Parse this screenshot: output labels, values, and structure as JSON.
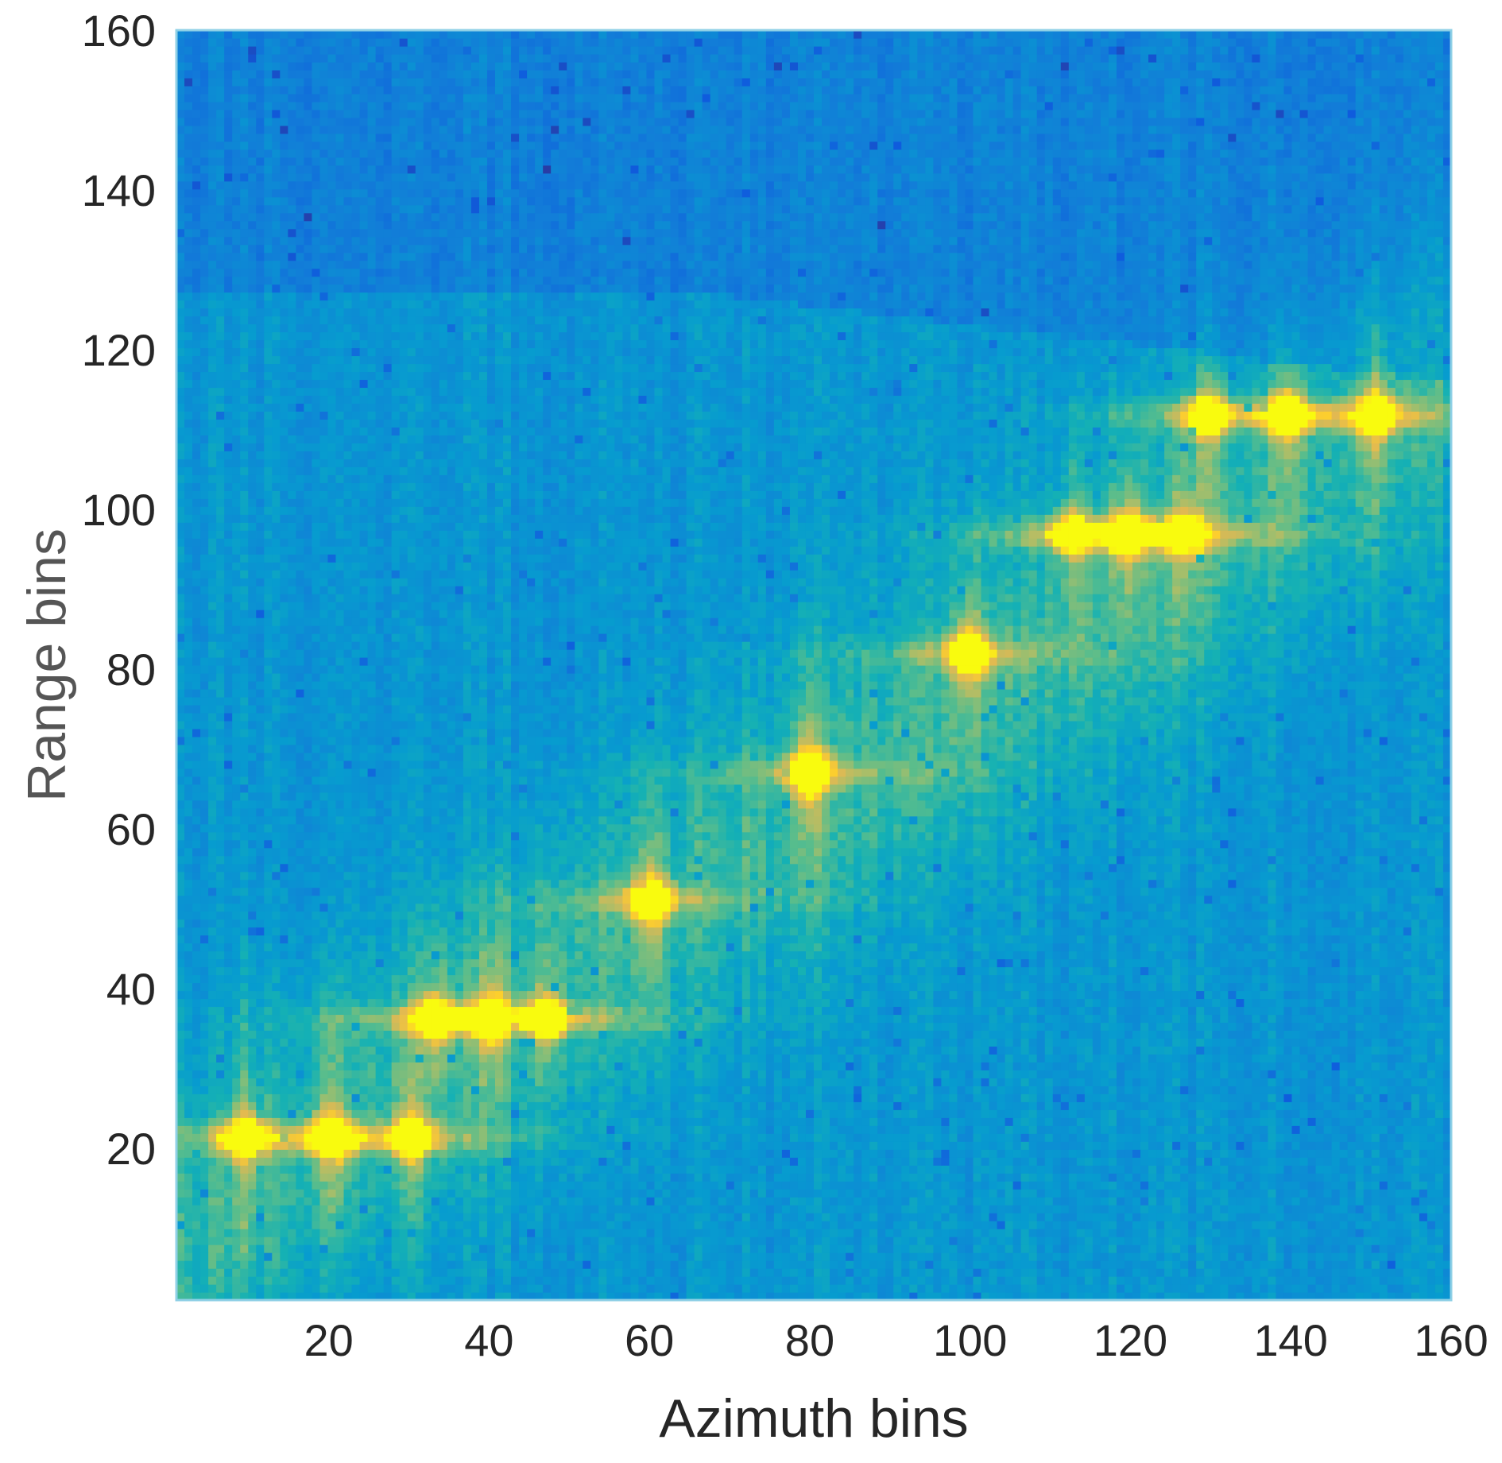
{
  "chart_data": {
    "type": "heatmap",
    "title": "",
    "xlabel": "Azimuth bins",
    "ylabel": "Range bins",
    "xlim": [
      1,
      160
    ],
    "ylim": [
      1,
      160
    ],
    "xticks": [
      20,
      40,
      60,
      80,
      100,
      120,
      140,
      160
    ],
    "yticks": [
      20,
      40,
      60,
      80,
      100,
      120,
      140,
      160
    ],
    "colormap": "parula",
    "colorbar": false,
    "grid": false,
    "background_level": 0.42,
    "upper_region": {
      "range_min": 127,
      "level": 0.32
    },
    "point_targets": [
      {
        "azimuth": 9,
        "range": 21,
        "intensity": 0.82
      },
      {
        "azimuth": 20,
        "range": 21,
        "intensity": 1.0
      },
      {
        "azimuth": 30,
        "range": 21,
        "intensity": 0.82
      },
      {
        "azimuth": 33,
        "range": 36,
        "intensity": 0.8
      },
      {
        "azimuth": 40,
        "range": 36,
        "intensity": 1.0
      },
      {
        "azimuth": 47,
        "range": 36,
        "intensity": 0.78
      },
      {
        "azimuth": 60,
        "range": 51,
        "intensity": 1.0
      },
      {
        "azimuth": 80,
        "range": 67,
        "intensity": 1.0
      },
      {
        "azimuth": 100,
        "range": 82,
        "intensity": 1.0
      },
      {
        "azimuth": 120,
        "range": 97,
        "intensity": 1.0
      },
      {
        "azimuth": 113,
        "range": 97,
        "intensity": 0.8
      },
      {
        "azimuth": 127,
        "range": 97,
        "intensity": 0.8
      },
      {
        "azimuth": 130,
        "range": 112,
        "intensity": 0.85
      },
      {
        "azimuth": 140,
        "range": 112,
        "intensity": 1.0
      },
      {
        "azimuth": 151,
        "range": 112,
        "intensity": 0.85
      }
    ],
    "colors": {
      "low": "#3063e8",
      "mid": "#14b4cd",
      "high": "#b4d33a",
      "peak": "#fff01a",
      "axis_frame": "#8fd0e6"
    }
  }
}
